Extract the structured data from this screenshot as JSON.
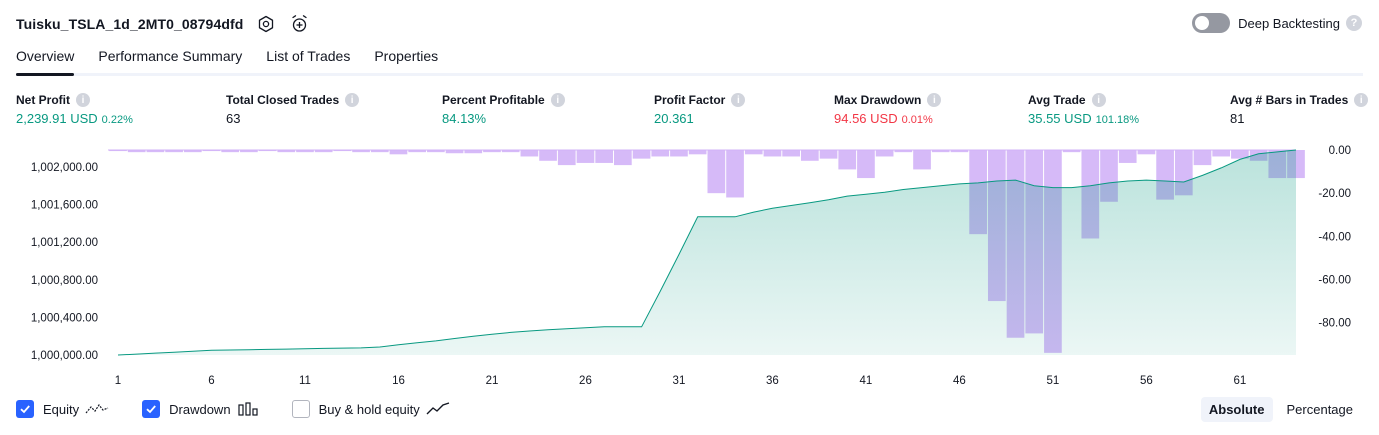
{
  "strategy": {
    "title": "Tuisku_TSLA_1d_2MT0_08794dfd",
    "settings_icon": "gear-icon",
    "alert_icon": "alarm-clock-plus-icon"
  },
  "deep_backtesting": {
    "label": "Deep Backtesting",
    "enabled": false,
    "help": "?"
  },
  "tabs": [
    {
      "label": "Overview",
      "active": true
    },
    {
      "label": "Performance Summary",
      "active": false
    },
    {
      "label": "List of Trades",
      "active": false
    },
    {
      "label": "Properties",
      "active": false
    }
  ],
  "metrics": [
    {
      "label": "Net Profit",
      "value": "2,239.91 USD",
      "pct": "0.22%",
      "color": "green"
    },
    {
      "label": "Total Closed Trades",
      "value": "63",
      "pct": "",
      "color": "dark"
    },
    {
      "label": "Percent Profitable",
      "value": "84.13%",
      "pct": "",
      "color": "green"
    },
    {
      "label": "Profit Factor",
      "value": "20.361",
      "pct": "",
      "color": "green"
    },
    {
      "label": "Max Drawdown",
      "value": "94.56 USD",
      "pct": "0.01%",
      "color": "red"
    },
    {
      "label": "Avg Trade",
      "value": "35.55 USD",
      "pct": "101.18%",
      "color": "green"
    },
    {
      "label": "Avg # Bars in Trades",
      "value": "81",
      "pct": "",
      "color": "dark"
    }
  ],
  "chart_data": {
    "type": "area",
    "equity_ylim": [
      1000000,
      1002180
    ],
    "equity_ticks": [
      "1,000,000.00",
      "1,000,400.00",
      "1,000,800.00",
      "1,001,200.00",
      "1,001,600.00",
      "1,002,000.00"
    ],
    "equity_tick_values": [
      1000000,
      1000400,
      1000800,
      1001200,
      1001600,
      1002000
    ],
    "drawdown_ylim": [
      -95,
      0
    ],
    "drawdown_ticks": [
      "0.00",
      "-20.00",
      "-40.00",
      "-60.00",
      "-80.00"
    ],
    "drawdown_tick_values": [
      0,
      -20,
      -40,
      -60,
      -80
    ],
    "x_ticks": [
      "1",
      "6",
      "11",
      "16",
      "21",
      "26",
      "31",
      "36",
      "41",
      "46",
      "51",
      "56",
      "61"
    ],
    "x_tick_values": [
      1,
      6,
      11,
      16,
      21,
      26,
      31,
      36,
      41,
      46,
      51,
      56,
      61
    ],
    "x_range": [
      1,
      64
    ],
    "series": [
      {
        "name": "Equity",
        "color": "#089981",
        "values": [
          1000000,
          1000010,
          1000020,
          1000030,
          1000040,
          1000050,
          1000053,
          1000056,
          1000060,
          1000063,
          1000066,
          1000070,
          1000073,
          1000076,
          1000085,
          1000110,
          1000130,
          1000150,
          1000175,
          1000200,
          1000220,
          1000240,
          1000255,
          1000268,
          1000280,
          1000290,
          1000300,
          1000300,
          1000300,
          1000680,
          1001070,
          1001470,
          1001470,
          1001470,
          1001520,
          1001560,
          1001590,
          1001620,
          1001650,
          1001690,
          1001710,
          1001730,
          1001760,
          1001780,
          1001800,
          1001820,
          1001830,
          1001850,
          1001860,
          1001800,
          1001780,
          1001780,
          1001800,
          1001830,
          1001850,
          1001860,
          1001850,
          1001840,
          1001910,
          1001990,
          1002080,
          1002140,
          1002160,
          1002180
        ]
      },
      {
        "name": "Drawdown",
        "color": "#d1b3f7",
        "values": [
          -0.5,
          -1,
          -1,
          -1,
          -1,
          -0.5,
          -1,
          -1,
          -0.5,
          -1,
          -1,
          -1,
          -0.5,
          -1,
          -1,
          -2,
          -1,
          -1,
          -1.5,
          -1.5,
          -1,
          -1,
          -3,
          -5,
          -7,
          -6,
          -6,
          -7,
          -4,
          -3,
          -3,
          -2,
          -20,
          -22,
          -2,
          -3,
          -3,
          -5,
          -4,
          -9,
          -13,
          -3,
          -1,
          -9,
          -1,
          -1,
          -39,
          -70,
          -87,
          -85,
          -94,
          -1,
          -41,
          -24,
          -6,
          -2,
          -23,
          -21,
          -7,
          -3,
          -4,
          -5,
          -13,
          -13
        ]
      }
    ]
  },
  "legend": [
    {
      "label": "Equity",
      "checked": true,
      "icon": "equity-line-icon"
    },
    {
      "label": "Drawdown",
      "checked": true,
      "icon": "drawdown-bars-icon"
    },
    {
      "label": "Buy & hold equity",
      "checked": false,
      "icon": "buy-hold-line-icon"
    }
  ],
  "mode": {
    "absolute": "Absolute",
    "percentage": "Percentage",
    "selected": "Absolute"
  }
}
